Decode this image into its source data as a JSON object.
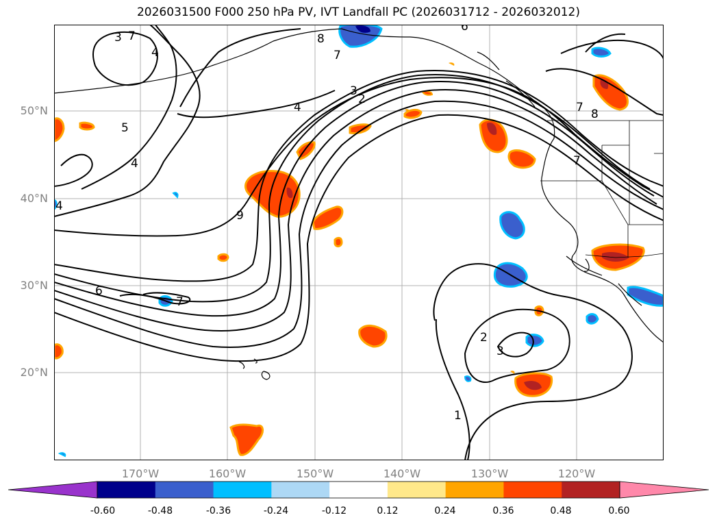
{
  "title": "2026031500 F000 250 hPa PV, IVT Landfall PC (2026031712 - 2026032012)",
  "lat_labels": [
    "50°N",
    "40°N",
    "30°N",
    "20°N"
  ],
  "lon_labels": [
    "170°W",
    "160°W",
    "150°W",
    "140°W",
    "130°W",
    "120°W"
  ],
  "contour_labels": [
    "3",
    "4",
    "5",
    "4",
    "8",
    "7",
    "3",
    "2",
    "4",
    "6",
    "7",
    "7",
    "8",
    "7",
    "9",
    "6",
    "7",
    "2",
    "3",
    "1",
    "4"
  ],
  "colorbar": {
    "tick_labels": [
      "-0.60",
      "-0.48",
      "-0.36",
      "-0.24",
      "-0.12",
      "0.12",
      "0.24",
      "0.36",
      "0.48",
      "0.60"
    ],
    "colors": [
      "#9933cc",
      "#00008b",
      "#3a5fcd",
      "#00bfff",
      "#add8f5",
      "#ffffff",
      "#ffe88a",
      "#ffa500",
      "#ff4500",
      "#b22222",
      "#ff88aa"
    ]
  },
  "shading_colors": {
    "pos_1": "#ffe88a",
    "pos_2": "#ffa500",
    "pos_3": "#ff4500",
    "pos_4": "#b22222",
    "neg_1": "#add8f5",
    "neg_2": "#00bfff",
    "neg_3": "#3a5fcd",
    "neg_4": "#00008b"
  }
}
